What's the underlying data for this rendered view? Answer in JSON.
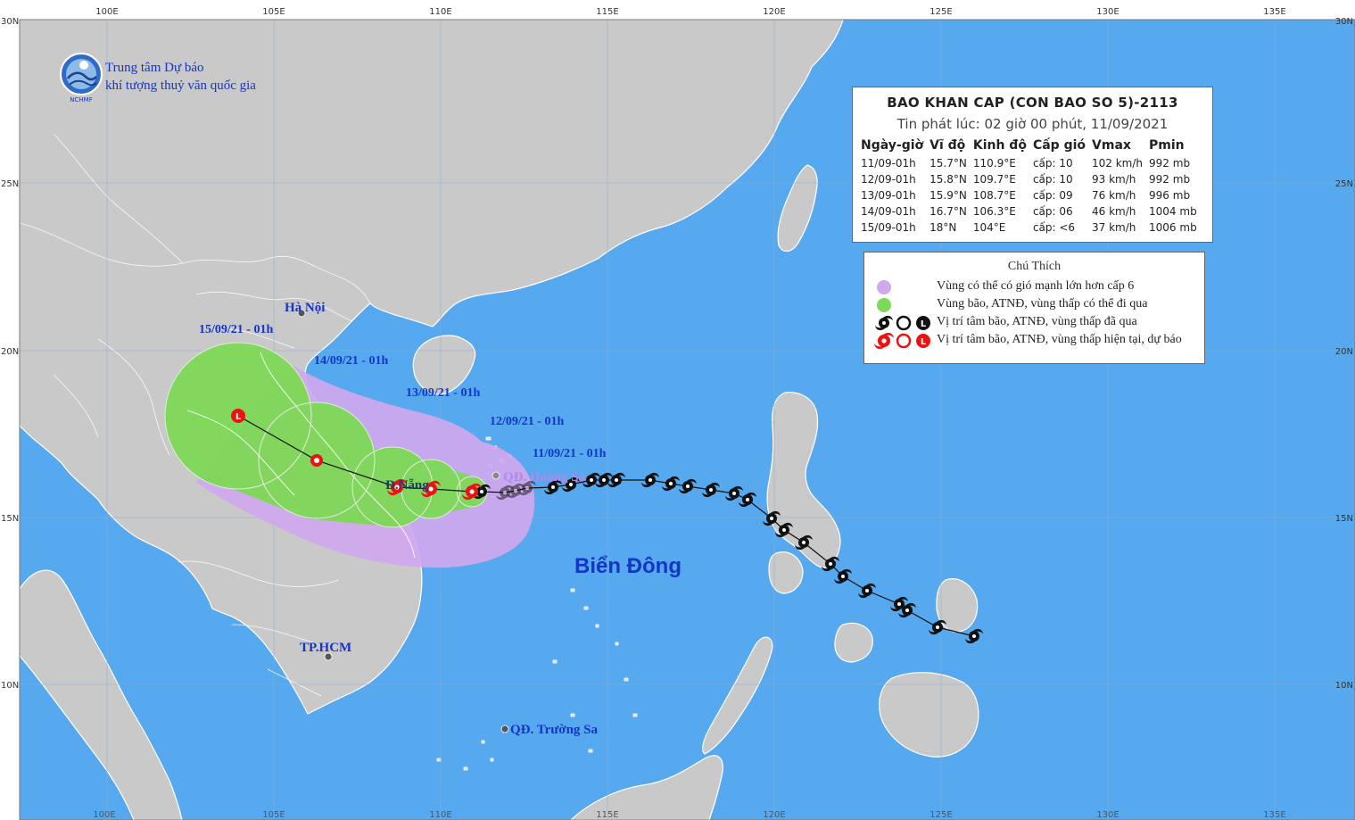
{
  "map": {
    "grid": {
      "lon_labels": [
        "100E",
        "105E",
        "110E",
        "115E",
        "120E",
        "125E",
        "130E",
        "135E"
      ],
      "lat_labels": [
        "30N",
        "25N",
        "20N",
        "15N",
        "10N"
      ],
      "bottom_lon_labels": [
        "100E",
        "105E",
        "110E",
        "115E",
        "120E",
        "125E",
        "130E",
        "135E"
      ]
    },
    "colors": {
      "sea": "#56a8ef",
      "land": "#c9c9c9",
      "land_border": "#ffffff",
      "warning_zone": "#cfa8ee",
      "storm_zone": "#7ed957",
      "track_past": "#111111",
      "track_forecast": "#ee1111",
      "label_blue": "#1535c8"
    },
    "places": {
      "hanoi": "Hà Nội",
      "danang": "Đ.Nẵng",
      "hcm": "TP.HCM",
      "hoangsa": "QĐ. Hoàng Sa",
      "truongsa": "QĐ. Trường Sa",
      "sea": "Biển Đông"
    },
    "forecast_labels": [
      "15/09/21 - 01h",
      "14/09/21 - 01h",
      "13/09/21 - 01h",
      "12/09/21 - 01h",
      "11/09/21 - 01h"
    ]
  },
  "header": {
    "org_line1": "Trung tâm Dự báo",
    "org_line2": "khí tượng thuỷ văn quốc gia",
    "logo_text": "NCHMF"
  },
  "bulletin": {
    "title": "BAO KHAN CAP (CON BAO SO 5)-2113",
    "subtitle": "Tin phát lúc: 02 giờ 00 phút, 11/09/2021",
    "columns": [
      "Ngày-giờ",
      "Vĩ độ",
      "Kinh độ",
      "Cấp gió",
      "Vmax",
      "Pmin"
    ],
    "rows": [
      [
        "11/09-01h",
        "15.7°N",
        "110.9°E",
        "cấp: 10",
        "102 km/h",
        "992 mb"
      ],
      [
        "12/09-01h",
        "15.8°N",
        "109.7°E",
        "cấp: 10",
        "93 km/h",
        "992 mb"
      ],
      [
        "13/09-01h",
        "15.9°N",
        "108.7°E",
        "cấp: 09",
        "76 km/h",
        "996 mb"
      ],
      [
        "14/09-01h",
        "16.7°N",
        "106.3°E",
        "cấp: 06",
        "46 km/h",
        "1004 mb"
      ],
      [
        "15/09-01h",
        "18°N",
        "104°E",
        "cấp: <6",
        "37 km/h",
        "1006 mb"
      ]
    ]
  },
  "legend": {
    "title": "Chú Thích",
    "items": [
      "Vùng có thể có gió mạnh lớn hơn cấp 6",
      "Vùng bão, ATNĐ, vùng thấp có thể đi qua",
      "Vị trí tâm bão, ATNĐ, vùng thấp đã qua",
      "Vị trí tâm bão, ATNĐ, vùng thấp hiện tại, dự báo"
    ]
  }
}
